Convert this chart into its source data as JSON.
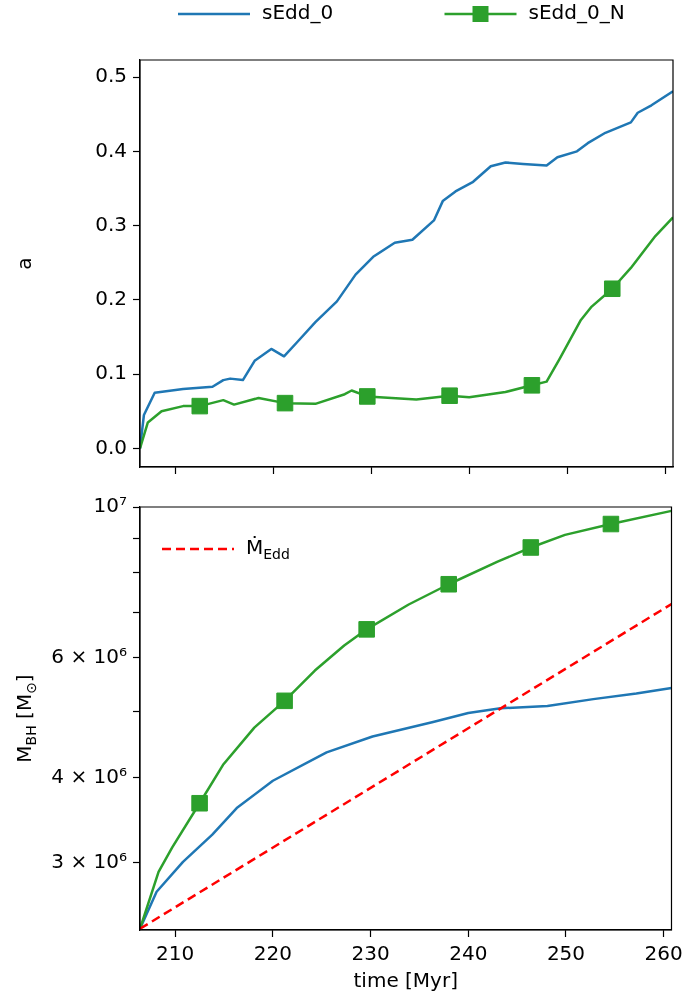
{
  "chart_data": [
    {
      "type": "line",
      "ylabel": "a",
      "legend": "top",
      "grid": false,
      "tick_labels": "y",
      "xlim": [
        206.4,
        260.8
      ],
      "xticks": [
        210,
        220,
        230,
        240,
        250,
        260
      ],
      "ylim": [
        -0.025,
        0.523
      ],
      "yticks": [
        {
          "value": 0,
          "label": "0.0"
        },
        0.1,
        0.2,
        0.3,
        0.4,
        0.5
      ],
      "series": [
        {
          "name": "sEdd_0",
          "color": "#1f77b4",
          "x": [
            206.4,
            206.8,
            207.9,
            210.8,
            213.8,
            214.9,
            215.6,
            216.9,
            218.1,
            219.8,
            221.1,
            222.5,
            224.3,
            226.5,
            228.4,
            230.2,
            232.4,
            234.2,
            236.4,
            237.3,
            238.6,
            240.4,
            242.2,
            243.7,
            245.5,
            247.9,
            249.0,
            251.0,
            252.1,
            253.9,
            256.5,
            257.2,
            258.6,
            260.8
          ],
          "values": [
            0.0,
            0.045,
            0.075,
            0.08,
            0.083,
            0.092,
            0.094,
            0.092,
            0.118,
            0.134,
            0.124,
            0.144,
            0.17,
            0.198,
            0.234,
            0.258,
            0.277,
            0.281,
            0.307,
            0.333,
            0.346,
            0.359,
            0.38,
            0.385,
            0.383,
            0.381,
            0.392,
            0.4,
            0.411,
            0.425,
            0.439,
            0.452,
            0.462,
            0.481
          ]
        },
        {
          "name": "sEdd_0_N",
          "color": "#2ca02c",
          "x": [
            206.4,
            207.2,
            208.6,
            210.8,
            212.5,
            214.9,
            216.0,
            218.5,
            221.2,
            224.3,
            227.3,
            228.0,
            229.6,
            234.6,
            238.0,
            240.0,
            243.7,
            246.4,
            247.9,
            249.2,
            251.4,
            252.5,
            254.6,
            256.5,
            259.0,
            260.8
          ],
          "values": [
            0.0,
            0.035,
            0.05,
            0.057,
            0.057,
            0.065,
            0.059,
            0.068,
            0.061,
            0.06,
            0.073,
            0.078,
            0.07,
            0.066,
            0.071,
            0.069,
            0.076,
            0.085,
            0.09,
            0.12,
            0.173,
            0.191,
            0.215,
            0.243,
            0.286,
            0.311
          ]
        },
        {
          "type": "scatter",
          "color": "#2ca02c",
          "marker": "square",
          "x": [
            212.5,
            221.2,
            229.6,
            238.0,
            246.4,
            254.6
          ],
          "values": [
            0.057,
            0.061,
            0.07,
            0.071,
            0.085,
            0.215
          ]
        }
      ]
    },
    {
      "type": "line",
      "xlabel": "time [Myr]",
      "ylabel": "M$_{BH}$ [M$_{⊙}$]",
      "legend": "top left",
      "grid": false,
      "log": "y",
      "xlim": [
        206.4,
        260.8
      ],
      "xticks": [
        210,
        220,
        230,
        240,
        250,
        260
      ],
      "ylim": [
        2390000,
        10000000
      ],
      "yticks": [
        {
          "value": 3000000,
          "label": "3 × 10⁶"
        },
        {
          "value": 4000000,
          "label": "4 × 10⁶"
        },
        {
          "value": 5000000,
          "label": null
        },
        {
          "value": 6000000,
          "label": "6 × 10⁶"
        },
        {
          "value": 7000000,
          "label": null
        },
        {
          "value": 8000000,
          "label": null
        },
        {
          "value": 9000000,
          "label": null
        },
        {
          "value": 10000000,
          "label": "10⁷"
        }
      ],
      "series": [
        {
          "color": "#1f77b4",
          "x": [
            206.4,
            208.1,
            210.8,
            213.8,
            216.3,
            220.0,
            225.5,
            230.2,
            236.4,
            240.0,
            243.3,
            248.1,
            252.8,
            257.2,
            260.8
          ],
          "values": [
            2400000,
            2720000,
            3010000,
            3300000,
            3610000,
            3960000,
            4360000,
            4600000,
            4830000,
            4980000,
            5060000,
            5100000,
            5220000,
            5320000,
            5420000
          ]
        },
        {
          "color": "#2ca02c",
          "x": [
            206.4,
            208.3,
            209.7,
            212.5,
            214.9,
            218.1,
            221.2,
            224.3,
            227.3,
            229.6,
            233.9,
            238.0,
            243.0,
            246.4,
            249.9,
            254.6,
            260.8
          ],
          "values": [
            2400000,
            2910000,
            3160000,
            3670000,
            4180000,
            4740000,
            5190000,
            5750000,
            6260000,
            6610000,
            7190000,
            7700000,
            8310000,
            8720000,
            9100000,
            9440000,
            9870000
          ]
        },
        {
          "type": "scatter",
          "color": "#2ca02c",
          "marker": "square",
          "x": [
            212.5,
            221.2,
            229.6,
            238.0,
            246.4,
            254.6
          ],
          "values": [
            3670000,
            5190000,
            6610000,
            7700000,
            8720000,
            9440000
          ]
        },
        {
          "name": "Ṁ$_{Edd}$",
          "color": "#ff0000",
          "line_style": "dashed",
          "x": [
            206.4,
            260.8
          ],
          "values": [
            2400000,
            7200000
          ]
        }
      ]
    }
  ]
}
